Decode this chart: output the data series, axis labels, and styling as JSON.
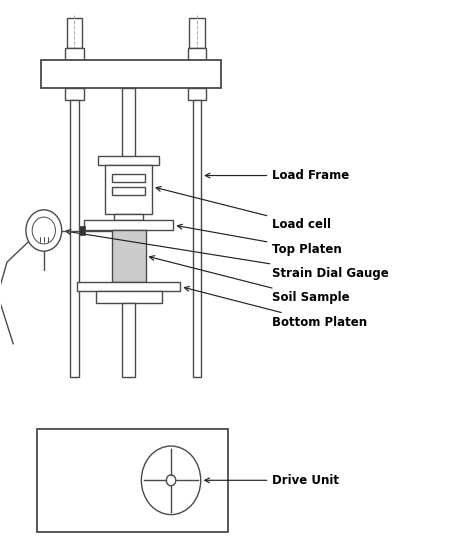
{
  "bg_color": "#ffffff",
  "line_color": "#4a4a4a",
  "sample_fill": "#cccccc",
  "labels": {
    "load_frame": "Load Frame",
    "load_cell": "Load cell",
    "top_platen": "Top Platen",
    "strain_gauge": "Strain Dial Gauge",
    "soil_sample": "Soil Sample",
    "bottom_platen": "Bottom Platen",
    "drive_unit": "Drive Unit"
  },
  "label_fontsize": 8.5,
  "label_fontweight": "bold",
  "fig_width": 4.74,
  "fig_height": 5.47,
  "dpi": 100
}
